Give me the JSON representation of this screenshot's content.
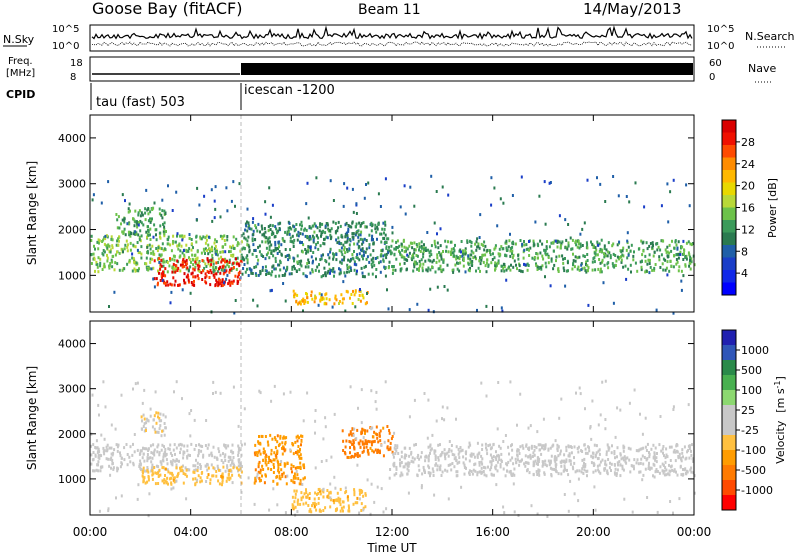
{
  "header": {
    "station": "Goose Bay (fitACF)",
    "beam": "Beam 11",
    "date": "14/May/2013"
  },
  "status_panels": {
    "nsky": {
      "label": "N.Sky",
      "ticks": [
        "10^5",
        "10^0"
      ],
      "right_ticks": [
        "10^5",
        "10^0"
      ],
      "right_label": "N.Search"
    },
    "freq": {
      "label_line1": "Freq.",
      "label_line2": "[MHz]",
      "ticks": [
        "18",
        "8"
      ],
      "right_ticks": [
        "60",
        "0"
      ],
      "right_label": "Nave"
    },
    "cpid": {
      "label": "CPID",
      "modes": [
        {
          "name": "tau (fast) 503",
          "start_hour": 0
        },
        {
          "name": "icescan -1200",
          "start_hour": 6
        }
      ]
    }
  },
  "colorbars": {
    "power": {
      "label": "Power [dB]",
      "ticks": [
        "28",
        "24",
        "20",
        "16",
        "12",
        "8",
        "4"
      ],
      "colors": [
        "#d90000",
        "#f01000",
        "#ff4a00",
        "#ff8c00",
        "#ffb800",
        "#e8d800",
        "#b8d838",
        "#6cc24a",
        "#3b9a5a",
        "#2a7a50",
        "#1f5fa8",
        "#1a3ec8",
        "#1028e8",
        "#0000ff"
      ]
    },
    "velocity": {
      "label": "Velocity",
      "unit_text": "[m s",
      "unit_exp": "-1",
      "unit_close": "]",
      "ticks": [
        "1000",
        "500",
        "100",
        "25",
        "-25",
        "-100",
        "-500",
        "-1000"
      ],
      "colors": [
        "#2020b0",
        "#2f56b8",
        "#2a8a4a",
        "#48b050",
        "#8cd870",
        "#c8c8c8",
        "#c8c8c8",
        "#ffc040",
        "#ff9c00",
        "#ff7a00",
        "#ff4a00",
        "#ff0000"
      ]
    }
  },
  "range_axis": {
    "label": "Slant Range [km]",
    "ticks": [
      "4000",
      "3000",
      "2000",
      "1000"
    ]
  },
  "chart_data": [
    {
      "type": "heatmap",
      "parameter": "Power",
      "units": "dB",
      "x_unit": "hour UT",
      "xlim": [
        0,
        24
      ],
      "ylim": [
        200,
        4500
      ],
      "colorbar_range": [
        0,
        30
      ],
      "bands": [
        {
          "x_start": 0,
          "x_end": 6,
          "y_low": 1100,
          "y_high": 1900,
          "value": 14
        },
        {
          "x_start": 2.5,
          "x_end": 6,
          "y_low": 800,
          "y_high": 1400,
          "value": 28
        },
        {
          "x_start": 1,
          "x_end": 3,
          "y_low": 1900,
          "y_high": 2500,
          "value": 12
        },
        {
          "x_start": 6,
          "x_end": 12,
          "y_low": 1000,
          "y_high": 2200,
          "value": 10
        },
        {
          "x_start": 8,
          "x_end": 11,
          "y_low": 400,
          "y_high": 700,
          "value": 20
        },
        {
          "x_start": 12,
          "x_end": 24,
          "y_low": 1100,
          "y_high": 1800,
          "value": 12
        }
      ]
    },
    {
      "type": "heatmap",
      "parameter": "Velocity",
      "units": "m s^-1",
      "x_unit": "hour UT",
      "xlim": [
        0,
        24
      ],
      "ylim": [
        200,
        4500
      ],
      "colorbar_range": [
        -1000,
        1000
      ],
      "bands": [
        {
          "x_start": 0,
          "x_end": 6,
          "y_low": 1200,
          "y_high": 1800,
          "value": 0
        },
        {
          "x_start": 2,
          "x_end": 6,
          "y_low": 900,
          "y_high": 1300,
          "value": -300
        },
        {
          "x_start": 2,
          "x_end": 3,
          "y_low": 2000,
          "y_high": 2500,
          "value": -150
        },
        {
          "x_start": 6.5,
          "x_end": 8.5,
          "y_low": 900,
          "y_high": 2000,
          "value": -500
        },
        {
          "x_start": 10,
          "x_end": 12,
          "y_low": 1500,
          "y_high": 2200,
          "value": -600
        },
        {
          "x_start": 8,
          "x_end": 11,
          "y_low": 300,
          "y_high": 800,
          "value": -300
        },
        {
          "x_start": 12,
          "x_end": 24,
          "y_low": 1100,
          "y_high": 1800,
          "value": 0
        }
      ]
    }
  ],
  "time_axis": {
    "label": "Time UT",
    "ticks": [
      "00:00",
      "04:00",
      "08:00",
      "12:00",
      "16:00",
      "20:00",
      "00:00"
    ]
  }
}
